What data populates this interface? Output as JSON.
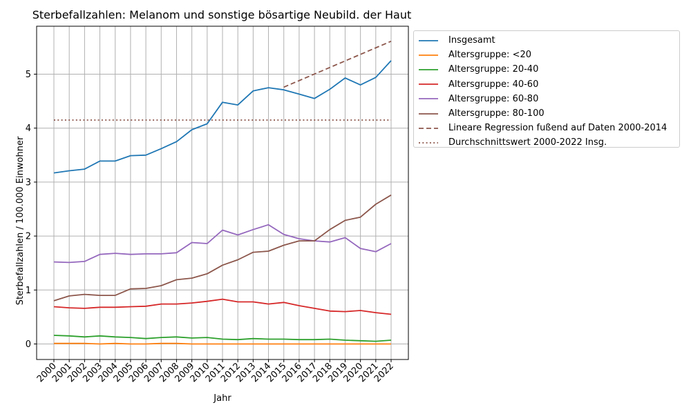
{
  "chart_data": {
    "type": "line",
    "title": "Sterbefallzahlen: Melanom und sonstige bösartige Neubild. der Haut",
    "xlabel": "Jahr",
    "ylabel": "Sterbefallzahlen / 100.000 Einwohner",
    "x": [
      2000,
      2001,
      2002,
      2003,
      2004,
      2005,
      2006,
      2007,
      2008,
      2009,
      2010,
      2011,
      2012,
      2013,
      2014,
      2015,
      2016,
      2017,
      2018,
      2019,
      2020,
      2021,
      2022
    ],
    "x_tick_labels": [
      "2000",
      "2001",
      "2002",
      "2003",
      "2004",
      "2005",
      "2006",
      "2007",
      "2008",
      "2009",
      "2010",
      "2011",
      "2012",
      "2013",
      "2014",
      "2015",
      "2016",
      "2017",
      "2018",
      "2019",
      "2020",
      "2021",
      "2022"
    ],
    "y_ticks": [
      0,
      1,
      2,
      3,
      4,
      5
    ],
    "ylim": [
      -0.28,
      5.88
    ],
    "grid": true,
    "legend_position": "outside upper right",
    "series": [
      {
        "name": "Insgesamt",
        "color": "#1f77b4",
        "style": "solid",
        "values": [
          3.17,
          3.21,
          3.24,
          3.39,
          3.39,
          3.49,
          3.5,
          3.62,
          3.75,
          3.97,
          4.08,
          4.48,
          4.43,
          4.69,
          4.75,
          4.71,
          4.63,
          4.55,
          4.72,
          4.93,
          4.8,
          4.94,
          5.25
        ]
      },
      {
        "name": "Altersgruppe: <20",
        "color": "#ff7f0e",
        "style": "solid",
        "values": [
          0.01,
          0.01,
          0.01,
          0.0,
          0.01,
          0.0,
          0.0,
          0.01,
          0.01,
          0.0,
          0.0,
          0.0,
          0.0,
          0.0,
          0.0,
          0.0,
          0.0,
          0.0,
          0.0,
          0.0,
          0.0,
          0.0,
          0.0
        ]
      },
      {
        "name": "Altersgruppe: 20-40",
        "color": "#2ca02c",
        "style": "solid",
        "values": [
          0.16,
          0.15,
          0.13,
          0.15,
          0.13,
          0.12,
          0.1,
          0.12,
          0.13,
          0.11,
          0.12,
          0.09,
          0.08,
          0.1,
          0.09,
          0.09,
          0.08,
          0.08,
          0.09,
          0.07,
          0.06,
          0.05,
          0.07
        ]
      },
      {
        "name": "Altersgruppe: 40-60",
        "color": "#d62728",
        "style": "solid",
        "values": [
          0.69,
          0.67,
          0.66,
          0.68,
          0.68,
          0.69,
          0.7,
          0.74,
          0.74,
          0.76,
          0.79,
          0.83,
          0.78,
          0.78,
          0.74,
          0.77,
          0.71,
          0.66,
          0.61,
          0.6,
          0.62,
          0.58,
          0.55
        ]
      },
      {
        "name": "Altersgruppe: 60-80",
        "color": "#9467bd",
        "style": "solid",
        "values": [
          1.52,
          1.51,
          1.53,
          1.66,
          1.68,
          1.66,
          1.67,
          1.67,
          1.69,
          1.88,
          1.86,
          2.11,
          2.02,
          2.12,
          2.21,
          2.03,
          1.95,
          1.91,
          1.89,
          1.97,
          1.77,
          1.71,
          1.86
        ]
      },
      {
        "name": "Altersgruppe: 80-100",
        "color": "#8c564b",
        "style": "solid",
        "values": [
          0.8,
          0.89,
          0.92,
          0.9,
          0.9,
          1.02,
          1.03,
          1.08,
          1.19,
          1.22,
          1.3,
          1.46,
          1.56,
          1.7,
          1.72,
          1.83,
          1.91,
          1.91,
          2.12,
          2.29,
          2.35,
          2.59,
          2.76
        ]
      },
      {
        "name": "Lineare Regression fußend auf Daten 2000-2014",
        "color": "#8c564b",
        "style": "dashed",
        "x": [
          2015,
          2022
        ],
        "values": [
          4.76,
          5.61
        ]
      },
      {
        "name": "Durchschnittswert 2000-2022 Insg.",
        "color": "#8c564b",
        "style": "dotted",
        "x": [
          2000,
          2022
        ],
        "values": [
          4.15,
          4.15
        ]
      }
    ]
  }
}
